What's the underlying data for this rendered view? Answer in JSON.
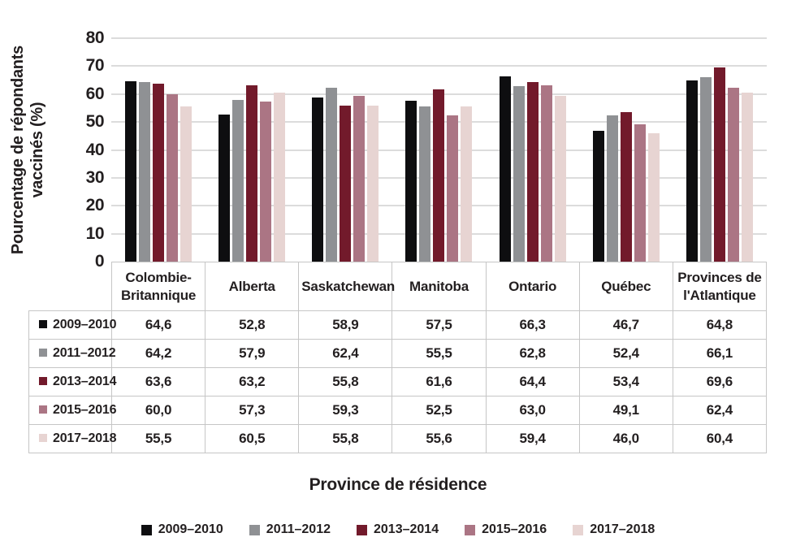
{
  "page": {
    "background": "#ffffff",
    "text_color": "#231f20",
    "gridline_color": "#dcdcdc",
    "table_border_color": "#c6c6c6"
  },
  "chart_data": {
    "type": "bar",
    "title": "",
    "xlabel": "Province de résidence",
    "ylabel": "Pourcentage de répondants vaccinés (%)",
    "ylabel_lines": [
      "Pourcentage de répondants",
      "vaccinés (%)"
    ],
    "ylim": [
      0,
      80
    ],
    "yticks": [
      0,
      10,
      20,
      30,
      40,
      50,
      60,
      70,
      80
    ],
    "grid": "horizontal",
    "legend_position": "bottom",
    "data_table_shown": true,
    "decimal_separator": ",",
    "categories": [
      "Colombie-Britannique",
      "Alberta",
      "Saskatchewan",
      "Manitoba",
      "Ontario",
      "Québec",
      "Provinces de l'Atlantique"
    ],
    "series": [
      {
        "name": "2009–2010",
        "color": "#0e0e10",
        "values": [
          64.6,
          52.8,
          58.9,
          57.5,
          66.3,
          46.7,
          64.8
        ]
      },
      {
        "name": "2011–2012",
        "color": "#8f9194",
        "values": [
          64.2,
          57.9,
          62.4,
          55.5,
          62.8,
          52.4,
          66.1
        ]
      },
      {
        "name": "2013–2014",
        "color": "#721a2b",
        "values": [
          63.6,
          63.2,
          55.8,
          61.6,
          64.4,
          53.4,
          69.6
        ]
      },
      {
        "name": "2015–2016",
        "color": "#ab7584",
        "values": [
          60.0,
          57.3,
          59.3,
          52.5,
          63.0,
          49.1,
          62.4
        ]
      },
      {
        "name": "2017–2018",
        "color": "#e7d4d2",
        "values": [
          55.5,
          60.5,
          55.8,
          55.6,
          59.4,
          46.0,
          60.4
        ]
      }
    ]
  }
}
